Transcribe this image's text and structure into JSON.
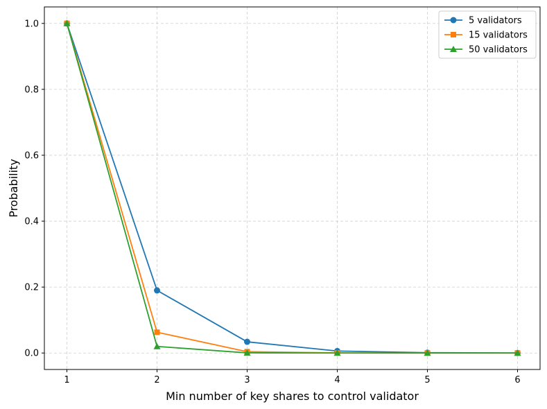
{
  "chart_data": {
    "type": "line",
    "title": "",
    "xlabel": "Min number of key shares to control validator",
    "ylabel": "Probability",
    "x": [
      1,
      2,
      3,
      4,
      5,
      6
    ],
    "xlim": [
      0.75,
      6.25
    ],
    "ylim": [
      -0.05,
      1.05
    ],
    "xticks": [
      1,
      2,
      3,
      4,
      5,
      6
    ],
    "yticks": [
      0.0,
      0.2,
      0.4,
      0.6,
      0.8,
      1.0
    ],
    "ytick_labels": [
      "0.0",
      "0.2",
      "0.4",
      "0.6",
      "0.8",
      "1.0"
    ],
    "grid": true,
    "legend_position": "top-right",
    "series": [
      {
        "name": "5 validators",
        "values": [
          1.0,
          0.19,
          0.034,
          0.006,
          0.001,
          0.0002
        ],
        "color": "#1f77b4",
        "marker": "circle"
      },
      {
        "name": "15 validators",
        "values": [
          1.0,
          0.063,
          0.004,
          0.0003,
          0.0,
          0.0
        ],
        "color": "#ff7f0e",
        "marker": "square"
      },
      {
        "name": "50 validators",
        "values": [
          1.0,
          0.02,
          0.0004,
          0.0,
          0.0,
          0.0
        ],
        "color": "#2ca02c",
        "marker": "triangle"
      }
    ]
  }
}
